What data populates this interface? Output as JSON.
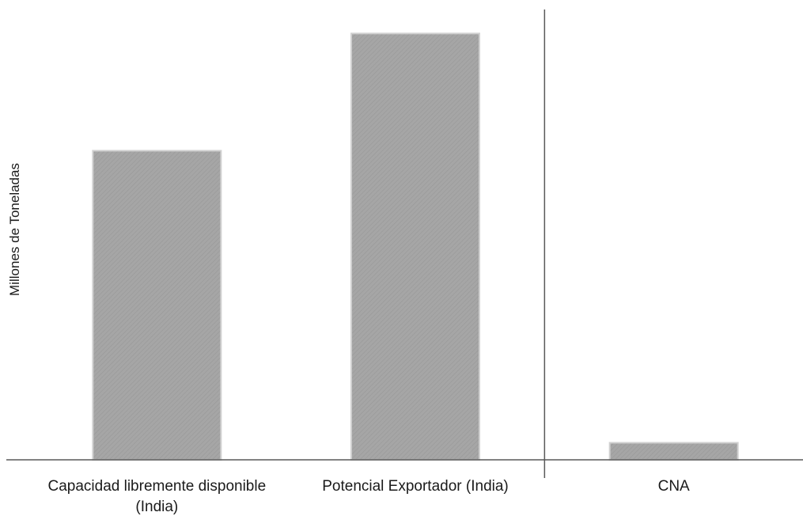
{
  "chart_data": {
    "type": "bar",
    "title": "",
    "xlabel": "",
    "ylabel": "Millones de Toneladas",
    "categories": [
      [
        "Capacidad libremente disponible",
        "(India)"
      ],
      [
        "Potencial Exportador (India)"
      ],
      [
        "CNA"
      ]
    ],
    "values": [
      72.5,
      100,
      4
    ],
    "ylim": [
      0,
      106
    ],
    "grid": false,
    "y_ticks_shown": false,
    "separator_after_index": 1,
    "colors": {
      "bar": "#a6a6a6",
      "bar_border": "#d0d0d0",
      "axis": "#595959"
    }
  }
}
